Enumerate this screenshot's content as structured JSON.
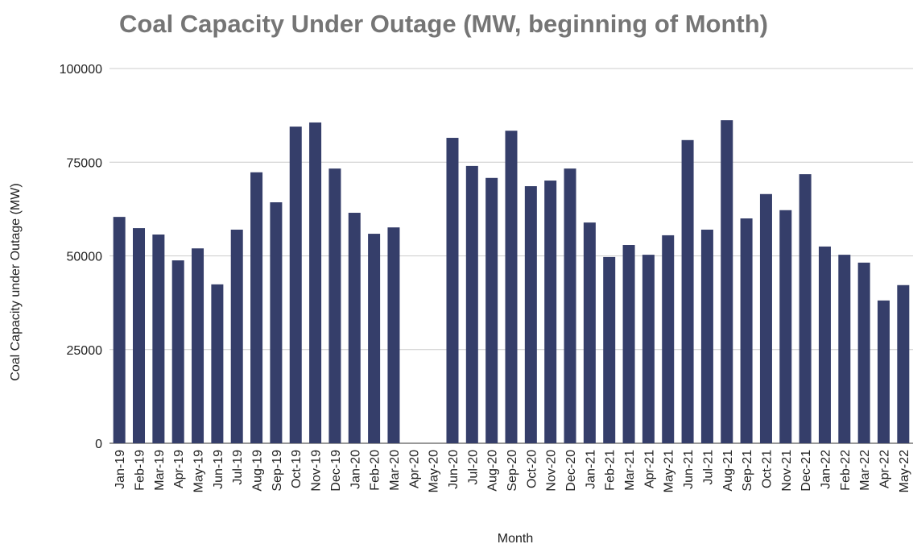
{
  "chart_data": {
    "type": "bar",
    "title": "Coal Capacity Under Outage (MW, beginning of Month)",
    "x_label": "Month",
    "y_label": "Coal Capacity under Outage (MW)",
    "categories": [
      "Jan-19",
      "Feb-19",
      "Mar-19",
      "Apr-19",
      "May-19",
      "Jun-19",
      "Jul-19",
      "Aug-19",
      "Sep-19",
      "Oct-19",
      "Nov-19",
      "Dec-19",
      "Jan-20",
      "Feb-20",
      "Mar-20",
      "Apr-20",
      "May-20",
      "Jun-20",
      "Jul-20",
      "Aug-20",
      "Sep-20",
      "Oct-20",
      "Nov-20",
      "Dec-20",
      "Jan-21",
      "Feb-21",
      "Mar-21",
      "Apr-21",
      "May-21",
      "Jun-21",
      "Jul-21",
      "Aug-21",
      "Sep-21",
      "Oct-21",
      "Nov-21",
      "Dec-21",
      "Jan-22",
      "Feb-22",
      "Mar-22",
      "Apr-22",
      "May-22"
    ],
    "values": [
      60400,
      57400,
      55700,
      48800,
      52000,
      42400,
      57000,
      72300,
      64300,
      84500,
      85600,
      73300,
      61500,
      55900,
      57600,
      null,
      null,
      81500,
      74000,
      70800,
      83400,
      68600,
      70100,
      73300,
      58900,
      49700,
      52900,
      50300,
      55500,
      80900,
      57000,
      86200,
      60000,
      66500,
      62200,
      71800,
      52500,
      50300,
      48200,
      38100,
      42200
    ],
    "color": "#353e6a",
    "ylim": [
      0,
      100000
    ],
    "yticks": [
      0,
      25000,
      50000,
      75000,
      100000
    ],
    "grid": true
  }
}
